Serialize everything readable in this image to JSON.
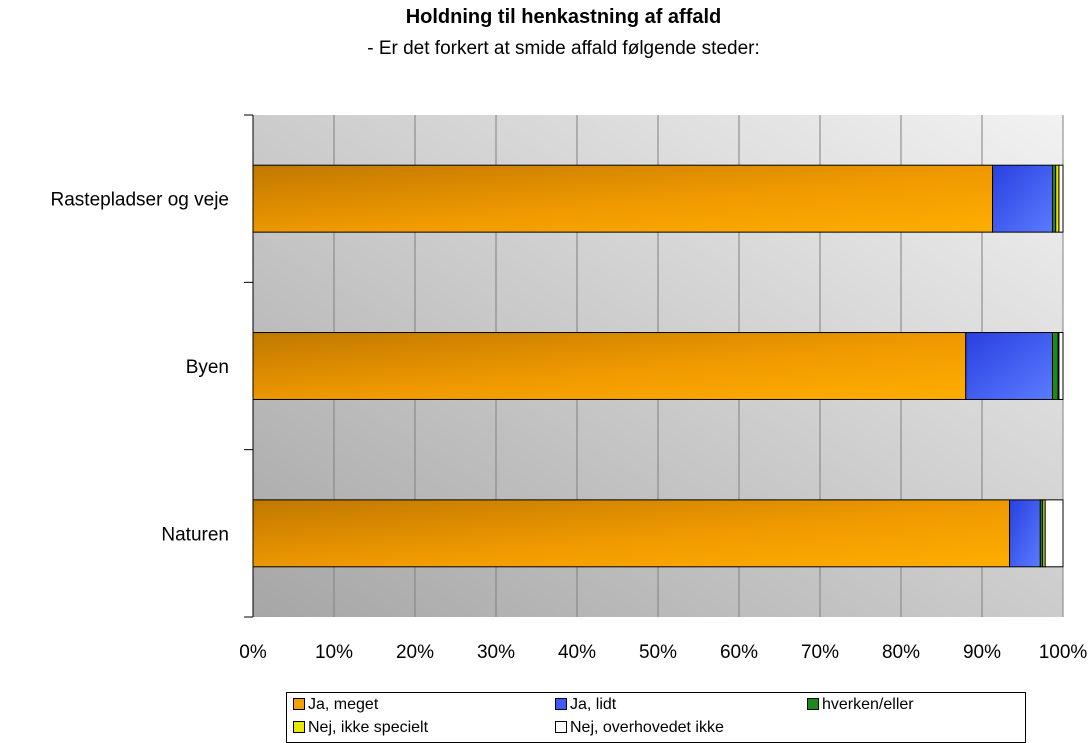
{
  "chart_data": {
    "type": "bar",
    "orientation": "horizontal",
    "stacked": "percent",
    "title": "Holdning til henkastning af affald",
    "subtitle": "- Er det forkert at smide affald følgende steder:",
    "categories": [
      "Rastepladser og veje",
      "Byen",
      "Naturen"
    ],
    "xlim": [
      0,
      100
    ],
    "xticks": [
      "0%",
      "10%",
      "20%",
      "30%",
      "40%",
      "50%",
      "60%",
      "70%",
      "80%",
      "90%",
      "100%"
    ],
    "grid": true,
    "legend_position": "bottom",
    "series": [
      {
        "name": "Ja, meget",
        "color": "#f5a000",
        "values": [
          91.3,
          88.0,
          93.4
        ]
      },
      {
        "name": "Ja, lidt",
        "color": "#3a5cff",
        "values": [
          7.4,
          10.7,
          3.8
        ]
      },
      {
        "name": "hverken/eller",
        "color": "#1e8a1e",
        "values": [
          0.4,
          0.7,
          0.3
        ]
      },
      {
        "name": "Nej, ikke specielt",
        "color": "#e8e800",
        "values": [
          0.4,
          0.1,
          0.3
        ]
      },
      {
        "name": "Nej, overhovedet ikke",
        "color": "#ffffff",
        "values": [
          0.5,
          0.5,
          2.2
        ]
      }
    ]
  }
}
